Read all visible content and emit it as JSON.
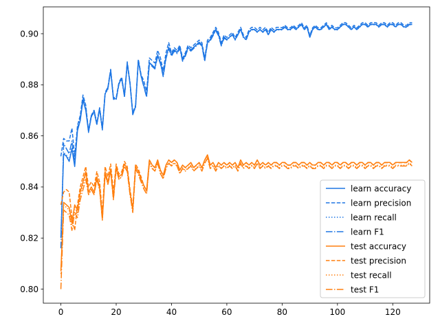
{
  "chart_data": {
    "type": "line",
    "title": "",
    "xlabel": "",
    "ylabel": "",
    "xlim": [
      -6.35,
      133.35
    ],
    "ylim": [
      0.7945,
      0.9105
    ],
    "xticks": [
      0,
      20,
      40,
      60,
      80,
      100,
      120
    ],
    "yticks": [
      0.8,
      0.82,
      0.84,
      0.86,
      0.88,
      0.9
    ],
    "ytick_labels": [
      "0.80",
      "0.82",
      "0.84",
      "0.86",
      "0.88",
      "0.90"
    ],
    "grid": false,
    "legend_position": "lower-right",
    "colors": {
      "learn": "#1f77e4",
      "test": "#ff7f0e"
    },
    "learn_points": [
      [
        0,
        0.82
      ],
      [
        1,
        0.853
      ],
      [
        2,
        0.852
      ],
      [
        3,
        0.85
      ],
      [
        4,
        0.855
      ],
      [
        5,
        0.848
      ],
      [
        6,
        0.862
      ],
      [
        7,
        0.866
      ],
      [
        8,
        0.874
      ],
      [
        9,
        0.87
      ],
      [
        10,
        0.861
      ],
      [
        11,
        0.867
      ],
      [
        12,
        0.869
      ],
      [
        13,
        0.864
      ],
      [
        14,
        0.87
      ],
      [
        15,
        0.862
      ],
      [
        16,
        0.876
      ],
      [
        17,
        0.878
      ],
      [
        18,
        0.885
      ],
      [
        19,
        0.874
      ],
      [
        20,
        0.874
      ],
      [
        21,
        0.88
      ],
      [
        22,
        0.882
      ],
      [
        23,
        0.875
      ],
      [
        24,
        0.888
      ],
      [
        25,
        0.88
      ],
      [
        26,
        0.868
      ],
      [
        27,
        0.871
      ],
      [
        28,
        0.889
      ],
      [
        29,
        0.883
      ],
      [
        30,
        0.88
      ],
      [
        31,
        0.876
      ],
      [
        32,
        0.889
      ],
      [
        33,
        0.888
      ],
      [
        34,
        0.887
      ],
      [
        35,
        0.892
      ],
      [
        36,
        0.889
      ],
      [
        37,
        0.884
      ],
      [
        38,
        0.891
      ],
      [
        39,
        0.895
      ],
      [
        40,
        0.892
      ],
      [
        41,
        0.894
      ],
      [
        42,
        0.893
      ],
      [
        43,
        0.895
      ],
      [
        44,
        0.89
      ],
      [
        45,
        0.892
      ],
      [
        46,
        0.895
      ],
      [
        47,
        0.894
      ],
      [
        48,
        0.895
      ],
      [
        49,
        0.896
      ],
      [
        50,
        0.897
      ],
      [
        51,
        0.896
      ],
      [
        52,
        0.89
      ],
      [
        53,
        0.897
      ],
      [
        54,
        0.898
      ],
      [
        55,
        0.9
      ],
      [
        56,
        0.902
      ],
      [
        57,
        0.9
      ],
      [
        58,
        0.896
      ],
      [
        59,
        0.899
      ],
      [
        60,
        0.898
      ],
      [
        61,
        0.899
      ],
      [
        62,
        0.9
      ],
      [
        63,
        0.898
      ],
      [
        64,
        0.9
      ],
      [
        65,
        0.902
      ],
      [
        66,
        0.899
      ],
      [
        67,
        0.898
      ],
      [
        68,
        0.901
      ],
      [
        69,
        0.902
      ],
      [
        70,
        0.902
      ],
      [
        71,
        0.901
      ],
      [
        72,
        0.902
      ],
      [
        73,
        0.901
      ],
      [
        74,
        0.902
      ],
      [
        75,
        0.9
      ],
      [
        76,
        0.902
      ],
      [
        77,
        0.901
      ],
      [
        78,
        0.902
      ],
      [
        79,
        0.902
      ],
      [
        80,
        0.902
      ],
      [
        81,
        0.903
      ],
      [
        82,
        0.902
      ],
      [
        83,
        0.902
      ],
      [
        84,
        0.903
      ],
      [
        85,
        0.902
      ],
      [
        86,
        0.903
      ],
      [
        87,
        0.904
      ],
      [
        88,
        0.902
      ],
      [
        89,
        0.903
      ],
      [
        90,
        0.899
      ],
      [
        91,
        0.902
      ],
      [
        92,
        0.903
      ],
      [
        93,
        0.902
      ],
      [
        94,
        0.902
      ],
      [
        95,
        0.903
      ],
      [
        96,
        0.904
      ],
      [
        97,
        0.902
      ],
      [
        98,
        0.903
      ],
      [
        99,
        0.902
      ],
      [
        100,
        0.902
      ],
      [
        101,
        0.903
      ],
      [
        102,
        0.904
      ],
      [
        103,
        0.904
      ],
      [
        104,
        0.903
      ],
      [
        105,
        0.902
      ],
      [
        106,
        0.903
      ],
      [
        107,
        0.902
      ],
      [
        108,
        0.903
      ],
      [
        109,
        0.904
      ],
      [
        110,
        0.904
      ],
      [
        111,
        0.903
      ],
      [
        112,
        0.904
      ],
      [
        113,
        0.904
      ],
      [
        114,
        0.904
      ],
      [
        115,
        0.903
      ],
      [
        116,
        0.904
      ],
      [
        117,
        0.904
      ],
      [
        118,
        0.903
      ],
      [
        119,
        0.904
      ],
      [
        120,
        0.904
      ],
      [
        121,
        0.903
      ],
      [
        122,
        0.904
      ],
      [
        123,
        0.904
      ],
      [
        124,
        0.903
      ],
      [
        125,
        0.903
      ],
      [
        126,
        0.904
      ],
      [
        127,
        0.904
      ]
    ],
    "test_points": [
      [
        0,
        0.807
      ],
      [
        1,
        0.834
      ],
      [
        2,
        0.833
      ],
      [
        3,
        0.832
      ],
      [
        4,
        0.826
      ],
      [
        5,
        0.833
      ],
      [
        6,
        0.831
      ],
      [
        7,
        0.838
      ],
      [
        8,
        0.842
      ],
      [
        9,
        0.846
      ],
      [
        10,
        0.838
      ],
      [
        11,
        0.84
      ],
      [
        12,
        0.838
      ],
      [
        13,
        0.844
      ],
      [
        14,
        0.84
      ],
      [
        15,
        0.828
      ],
      [
        16,
        0.846
      ],
      [
        17,
        0.842
      ],
      [
        18,
        0.847
      ],
      [
        19,
        0.836
      ],
      [
        20,
        0.848
      ],
      [
        21,
        0.844
      ],
      [
        22,
        0.845
      ],
      [
        23,
        0.849
      ],
      [
        24,
        0.847
      ],
      [
        25,
        0.838
      ],
      [
        26,
        0.831
      ],
      [
        27,
        0.848
      ],
      [
        28,
        0.846
      ],
      [
        29,
        0.843
      ],
      [
        30,
        0.84
      ],
      [
        31,
        0.838
      ],
      [
        32,
        0.85
      ],
      [
        33,
        0.848
      ],
      [
        34,
        0.847
      ],
      [
        35,
        0.85
      ],
      [
        36,
        0.846
      ],
      [
        37,
        0.844
      ],
      [
        38,
        0.848
      ],
      [
        39,
        0.85
      ],
      [
        40,
        0.849
      ],
      [
        41,
        0.85
      ],
      [
        42,
        0.849
      ],
      [
        43,
        0.846
      ],
      [
        44,
        0.848
      ],
      [
        45,
        0.847
      ],
      [
        46,
        0.848
      ],
      [
        47,
        0.849
      ],
      [
        48,
        0.847
      ],
      [
        49,
        0.848
      ],
      [
        50,
        0.849
      ],
      [
        51,
        0.847
      ],
      [
        52,
        0.85
      ],
      [
        53,
        0.852
      ],
      [
        54,
        0.848
      ],
      [
        55,
        0.849
      ],
      [
        56,
        0.847
      ],
      [
        57,
        0.849
      ],
      [
        58,
        0.848
      ],
      [
        59,
        0.849
      ],
      [
        60,
        0.848
      ],
      [
        61,
        0.849
      ],
      [
        62,
        0.848
      ],
      [
        63,
        0.849
      ],
      [
        64,
        0.847
      ],
      [
        65,
        0.85
      ],
      [
        66,
        0.848
      ],
      [
        67,
        0.849
      ],
      [
        68,
        0.848
      ],
      [
        69,
        0.849
      ],
      [
        70,
        0.848
      ],
      [
        71,
        0.85
      ],
      [
        72,
        0.848
      ],
      [
        73,
        0.849
      ],
      [
        74,
        0.848
      ],
      [
        75,
        0.849
      ],
      [
        76,
        0.848
      ],
      [
        77,
        0.849
      ],
      [
        78,
        0.849
      ],
      [
        79,
        0.848
      ],
      [
        80,
        0.849
      ],
      [
        81,
        0.849
      ],
      [
        82,
        0.848
      ],
      [
        83,
        0.848
      ],
      [
        84,
        0.849
      ],
      [
        85,
        0.849
      ],
      [
        86,
        0.848
      ],
      [
        87,
        0.849
      ],
      [
        88,
        0.849
      ],
      [
        89,
        0.848
      ],
      [
        90,
        0.849
      ],
      [
        91,
        0.848
      ],
      [
        92,
        0.848
      ],
      [
        93,
        0.849
      ],
      [
        94,
        0.849
      ],
      [
        95,
        0.848
      ],
      [
        96,
        0.849
      ],
      [
        97,
        0.849
      ],
      [
        98,
        0.848
      ],
      [
        99,
        0.849
      ],
      [
        100,
        0.849
      ],
      [
        101,
        0.848
      ],
      [
        102,
        0.849
      ],
      [
        103,
        0.849
      ],
      [
        104,
        0.848
      ],
      [
        105,
        0.849
      ],
      [
        106,
        0.849
      ],
      [
        107,
        0.848
      ],
      [
        108,
        0.849
      ],
      [
        109,
        0.849
      ],
      [
        110,
        0.848
      ],
      [
        111,
        0.849
      ],
      [
        112,
        0.849
      ],
      [
        113,
        0.848
      ],
      [
        114,
        0.849
      ],
      [
        115,
        0.849
      ],
      [
        116,
        0.848
      ],
      [
        117,
        0.849
      ],
      [
        118,
        0.849
      ],
      [
        119,
        0.849
      ],
      [
        120,
        0.848
      ],
      [
        121,
        0.849
      ],
      [
        122,
        0.849
      ],
      [
        123,
        0.849
      ],
      [
        124,
        0.849
      ],
      [
        125,
        0.849
      ],
      [
        126,
        0.85
      ],
      [
        127,
        0.849
      ]
    ],
    "series": [
      {
        "name": "learn accuracy",
        "group": "learn",
        "dash": "solid",
        "base": "learn_points",
        "offsets": [
          [
            0,
            0
          ],
          [
            10,
            0.0005
          ],
          [
            30,
            -0.0003
          ]
        ]
      },
      {
        "name": "learn precision",
        "group": "learn",
        "dash": "dashed",
        "base": "learn_points",
        "offsets": [
          [
            0,
            0.032
          ],
          [
            1,
            0.006
          ],
          [
            2,
            0.006
          ],
          [
            3,
            0.008
          ],
          [
            4,
            0.008
          ],
          [
            5,
            0.004
          ],
          [
            6,
            0.002
          ],
          [
            10,
            0.001
          ],
          [
            15,
            0.001
          ],
          [
            20,
            0.001
          ],
          [
            30,
            0.0015
          ],
          [
            40,
            0.0005
          ],
          [
            80,
            0.0003
          ]
        ]
      },
      {
        "name": "learn recall",
        "group": "learn",
        "dash": "dotted",
        "base": "learn_points",
        "offsets": [
          [
            0,
            0.0005
          ],
          [
            10,
            0.0003
          ],
          [
            30,
            -0.0005
          ]
        ]
      },
      {
        "name": "learn F1",
        "group": "learn",
        "dash": "dashdot",
        "base": "learn_points",
        "offsets": [
          [
            0,
            -0.004
          ],
          [
            1,
            0.004
          ],
          [
            2,
            0.003
          ],
          [
            5,
            0.001
          ],
          [
            20,
            0.0003
          ],
          [
            30,
            -0.0008
          ],
          [
            60,
            -0.0004
          ]
        ]
      },
      {
        "name": "test accuracy",
        "group": "test",
        "dash": "solid",
        "base": "test_points",
        "offsets": [
          [
            0,
            0
          ],
          [
            30,
            0.0006
          ]
        ]
      },
      {
        "name": "test precision",
        "group": "test",
        "dash": "dashed",
        "base": "test_points",
        "offsets": [
          [
            0,
            0.026
          ],
          [
            1,
            0.004
          ],
          [
            2,
            0.006
          ],
          [
            4,
            0.002
          ],
          [
            5,
            -0.01
          ],
          [
            6,
            0.002
          ],
          [
            10,
            0.002
          ],
          [
            20,
            0.001
          ],
          [
            30,
            0.0005
          ]
        ]
      },
      {
        "name": "test recall",
        "group": "test",
        "dash": "dotted",
        "base": "test_points",
        "offsets": [
          [
            0,
            -0.001
          ],
          [
            30,
            -0.0005
          ]
        ]
      },
      {
        "name": "test F1",
        "group": "test",
        "dash": "dashdot",
        "base": "test_points",
        "offsets": [
          [
            0,
            -0.007
          ],
          [
            1,
            -0.003
          ],
          [
            3,
            -0.003
          ],
          [
            10,
            -0.001
          ],
          [
            30,
            -0.0008
          ]
        ]
      }
    ]
  }
}
